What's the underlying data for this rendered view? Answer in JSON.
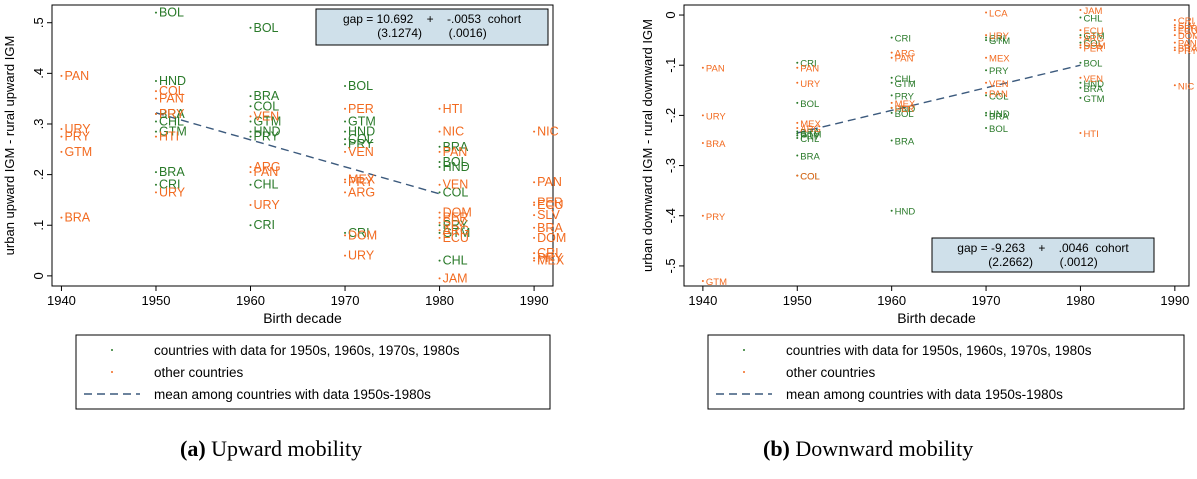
{
  "colors": {
    "cohort": "#2a7a2a",
    "other": "#f26b21",
    "mean_line": "#3c5a7d",
    "annotation_bg": "#cfe0ea",
    "axis": "#000000"
  },
  "chart_data": [
    {
      "type": "scatter",
      "panel_label": "(a)",
      "caption": "Upward mobility",
      "xlabel": "Birth decade",
      "ylabel": "urban upward IGM - rural upward IGM",
      "xlim": [
        1939,
        1992
      ],
      "ylim": [
        -0.02,
        0.535
      ],
      "xticks": [
        1940,
        1950,
        1960,
        1970,
        1980,
        1990
      ],
      "yticks": [
        0,
        0.1,
        0.2,
        0.3,
        0.4,
        0.5
      ],
      "yticklabels": [
        "0",
        ".1",
        ".2",
        ".3",
        ".4",
        ".5"
      ],
      "grid": false,
      "annotation": {
        "line1": "gap = 10.692    +    -.0053  cohort",
        "line2": "(3.1274)        (.0016)",
        "placement": "top-right"
      },
      "fit_line": {
        "name": "mean among countries with data 1950s-1980s",
        "x": [
          1950,
          1980
        ],
        "y": [
          0.322,
          0.162
        ]
      },
      "legend": {
        "placement": "bottom",
        "entries": [
          {
            "label": "countries with data for 1950s, 1960s, 1970s, 1980s",
            "kind": "cohort"
          },
          {
            "label": "other countries",
            "kind": "other"
          },
          {
            "label": "mean among countries with data 1950s-1980s",
            "kind": "line"
          }
        ]
      },
      "series": [
        {
          "kind": "cohort",
          "points": [
            {
              "x": 1950,
              "y": 0.52,
              "label": "BOL"
            },
            {
              "x": 1950,
              "y": 0.385,
              "label": "HND"
            },
            {
              "x": 1950,
              "y": 0.32,
              "label": "BRA"
            },
            {
              "x": 1950,
              "y": 0.305,
              "label": "CHL"
            },
            {
              "x": 1950,
              "y": 0.285,
              "label": "GTM"
            },
            {
              "x": 1950,
              "y": 0.205,
              "label": "BRA"
            },
            {
              "x": 1950,
              "y": 0.18,
              "label": "CRI"
            },
            {
              "x": 1960,
              "y": 0.49,
              "label": "BOL"
            },
            {
              "x": 1960,
              "y": 0.355,
              "label": "BRA"
            },
            {
              "x": 1960,
              "y": 0.335,
              "label": "COL"
            },
            {
              "x": 1960,
              "y": 0.305,
              "label": "GTM"
            },
            {
              "x": 1960,
              "y": 0.285,
              "label": "HND"
            },
            {
              "x": 1960,
              "y": 0.275,
              "label": "PRY"
            },
            {
              "x": 1960,
              "y": 0.18,
              "label": "CHL"
            },
            {
              "x": 1960,
              "y": 0.1,
              "label": "CRI"
            },
            {
              "x": 1970,
              "y": 0.375,
              "label": "BOL"
            },
            {
              "x": 1970,
              "y": 0.305,
              "label": "GTM"
            },
            {
              "x": 1970,
              "y": 0.285,
              "label": "HND"
            },
            {
              "x": 1970,
              "y": 0.27,
              "label": "COL"
            },
            {
              "x": 1970,
              "y": 0.26,
              "label": "PRY"
            },
            {
              "x": 1970,
              "y": 0.085,
              "label": "CRI"
            },
            {
              "x": 1980,
              "y": 0.255,
              "label": "BRA"
            },
            {
              "x": 1980,
              "y": 0.225,
              "label": "BOL"
            },
            {
              "x": 1980,
              "y": 0.215,
              "label": "HND"
            },
            {
              "x": 1980,
              "y": 0.165,
              "label": "COL"
            },
            {
              "x": 1980,
              "y": 0.1,
              "label": "PRY"
            },
            {
              "x": 1980,
              "y": 0.085,
              "label": "GTM"
            },
            {
              "x": 1980,
              "y": 0.03,
              "label": "CHL"
            }
          ]
        },
        {
          "kind": "other",
          "points": [
            {
              "x": 1940,
              "y": 0.395,
              "label": "PAN"
            },
            {
              "x": 1940,
              "y": 0.29,
              "label": "URY"
            },
            {
              "x": 1940,
              "y": 0.275,
              "label": "PRY"
            },
            {
              "x": 1940,
              "y": 0.245,
              "label": "GTM"
            },
            {
              "x": 1940,
              "y": 0.115,
              "label": "BRA"
            },
            {
              "x": 1950,
              "y": 0.365,
              "label": "COL"
            },
            {
              "x": 1950,
              "y": 0.35,
              "label": "PAN"
            },
            {
              "x": 1950,
              "y": 0.32,
              "label": "PRY"
            },
            {
              "x": 1950,
              "y": 0.275,
              "label": "HTI"
            },
            {
              "x": 1950,
              "y": 0.165,
              "label": "URY"
            },
            {
              "x": 1960,
              "y": 0.315,
              "label": "VEN"
            },
            {
              "x": 1960,
              "y": 0.215,
              "label": "ARG"
            },
            {
              "x": 1960,
              "y": 0.205,
              "label": "PAN"
            },
            {
              "x": 1960,
              "y": 0.14,
              "label": "URY"
            },
            {
              "x": 1970,
              "y": 0.33,
              "label": "PER"
            },
            {
              "x": 1970,
              "y": 0.245,
              "label": "VEN"
            },
            {
              "x": 1970,
              "y": 0.19,
              "label": "MEX"
            },
            {
              "x": 1970,
              "y": 0.185,
              "label": "PRY"
            },
            {
              "x": 1970,
              "y": 0.165,
              "label": "ARG"
            },
            {
              "x": 1970,
              "y": 0.08,
              "label": "DOM"
            },
            {
              "x": 1970,
              "y": 0.04,
              "label": "URY"
            },
            {
              "x": 1980,
              "y": 0.33,
              "label": "HTI"
            },
            {
              "x": 1980,
              "y": 0.285,
              "label": "NIC"
            },
            {
              "x": 1980,
              "y": 0.245,
              "label": "PAN"
            },
            {
              "x": 1980,
              "y": 0.18,
              "label": "VEN"
            },
            {
              "x": 1980,
              "y": 0.125,
              "label": "DOM"
            },
            {
              "x": 1980,
              "y": 0.115,
              "label": "PER"
            },
            {
              "x": 1980,
              "y": 0.105,
              "label": "SLV"
            },
            {
              "x": 1980,
              "y": 0.09,
              "label": "ARG"
            },
            {
              "x": 1980,
              "y": 0.075,
              "label": "ECU"
            },
            {
              "x": 1980,
              "y": -0.005,
              "label": "JAM"
            },
            {
              "x": 1990,
              "y": 0.285,
              "label": "NIC"
            },
            {
              "x": 1990,
              "y": 0.185,
              "label": "PAN"
            },
            {
              "x": 1990,
              "y": 0.145,
              "label": "PER"
            },
            {
              "x": 1990,
              "y": 0.14,
              "label": "ECU"
            },
            {
              "x": 1990,
              "y": 0.12,
              "label": "SLV"
            },
            {
              "x": 1990,
              "y": 0.095,
              "label": "BRA"
            },
            {
              "x": 1990,
              "y": 0.075,
              "label": "DOM"
            },
            {
              "x": 1990,
              "y": 0.045,
              "label": "CRI"
            },
            {
              "x": 1990,
              "y": 0.035,
              "label": "PRY"
            },
            {
              "x": 1990,
              "y": 0.03,
              "label": "MEX"
            }
          ]
        }
      ]
    },
    {
      "type": "scatter",
      "panel_label": "(b)",
      "caption": "Downward mobility",
      "xlabel": "Birth decade",
      "ylabel": "urban downward IGM - rural downward IGM",
      "xlim": [
        1938,
        1991.5
      ],
      "ylim": [
        -0.54,
        0.02
      ],
      "xticks": [
        1940,
        1950,
        1960,
        1970,
        1980,
        1990
      ],
      "yticks": [
        -0.5,
        -0.4,
        -0.3,
        -0.2,
        -0.1,
        0
      ],
      "yticklabels": [
        "-.5",
        "-.4",
        "-.3",
        "-.2",
        "-.1",
        "0"
      ],
      "grid": false,
      "annotation": {
        "line1": "gap = -9.263    +    .0046  cohort",
        "line2": "(2.2662)        (.0012)",
        "placement": "bottom-right"
      },
      "fit_line": {
        "name": "mean among countries with data 1950s-1980s",
        "x": [
          1950,
          1980
        ],
        "y": [
          -0.235,
          -0.1
        ]
      },
      "legend": {
        "placement": "bottom",
        "entries": [
          {
            "label": "countries with data for 1950s, 1960s, 1970s, 1980s",
            "kind": "cohort"
          },
          {
            "label": "other countries",
            "kind": "other"
          },
          {
            "label": "mean among countries with data 1950s-1980s",
            "kind": "line"
          }
        ]
      },
      "series": [
        {
          "kind": "cohort",
          "points": [
            {
              "x": 1950,
              "y": -0.095,
              "label": "CRI"
            },
            {
              "x": 1950,
              "y": -0.175,
              "label": "BOL"
            },
            {
              "x": 1950,
              "y": -0.232,
              "label": "BRA"
            },
            {
              "x": 1950,
              "y": -0.236,
              "label": "GTM"
            },
            {
              "x": 1950,
              "y": -0.24,
              "label": "PRY"
            },
            {
              "x": 1950,
              "y": -0.245,
              "label": "CHL"
            },
            {
              "x": 1950,
              "y": -0.28,
              "label": "BRA"
            },
            {
              "x": 1950,
              "y": -0.32,
              "label": "COL"
            },
            {
              "x": 1960,
              "y": -0.045,
              "label": "CRI"
            },
            {
              "x": 1960,
              "y": -0.125,
              "label": "CHL"
            },
            {
              "x": 1960,
              "y": -0.135,
              "label": "GTM"
            },
            {
              "x": 1960,
              "y": -0.16,
              "label": "PRY"
            },
            {
              "x": 1960,
              "y": -0.185,
              "label": "HND"
            },
            {
              "x": 1960,
              "y": -0.195,
              "label": "BOL"
            },
            {
              "x": 1960,
              "y": -0.25,
              "label": "BRA"
            },
            {
              "x": 1960,
              "y": -0.39,
              "label": "HND"
            },
            {
              "x": 1970,
              "y": -0.045,
              "label": "CRI"
            },
            {
              "x": 1970,
              "y": -0.05,
              "label": "GTM"
            },
            {
              "x": 1970,
              "y": -0.11,
              "label": "PRY"
            },
            {
              "x": 1970,
              "y": -0.16,
              "label": "COL"
            },
            {
              "x": 1970,
              "y": -0.195,
              "label": "HND"
            },
            {
              "x": 1970,
              "y": -0.2,
              "label": "BRA"
            },
            {
              "x": 1970,
              "y": -0.225,
              "label": "BOL"
            },
            {
              "x": 1980,
              "y": -0.005,
              "label": "CHL"
            },
            {
              "x": 1980,
              "y": -0.04,
              "label": "GTM"
            },
            {
              "x": 1980,
              "y": -0.055,
              "label": "COL"
            },
            {
              "x": 1980,
              "y": -0.135,
              "label": "HND"
            },
            {
              "x": 1980,
              "y": -0.145,
              "label": "BRA"
            },
            {
              "x": 1980,
              "y": -0.165,
              "label": "GTM"
            },
            {
              "x": 1980,
              "y": -0.095,
              "label": "BOL"
            }
          ]
        },
        {
          "kind": "other",
          "points": [
            {
              "x": 1940,
              "y": -0.105,
              "label": "PAN"
            },
            {
              "x": 1940,
              "y": -0.2,
              "label": "URY"
            },
            {
              "x": 1940,
              "y": -0.255,
              "label": "BRA"
            },
            {
              "x": 1940,
              "y": -0.4,
              "label": "PRY"
            },
            {
              "x": 1940,
              "y": -0.53,
              "label": "GTM"
            },
            {
              "x": 1950,
              "y": -0.105,
              "label": "PAN"
            },
            {
              "x": 1950,
              "y": -0.135,
              "label": "URY"
            },
            {
              "x": 1950,
              "y": -0.215,
              "label": "MEX"
            },
            {
              "x": 1950,
              "y": -0.225,
              "label": "ARG"
            },
            {
              "x": 1950,
              "y": -0.32,
              "label": "COL"
            },
            {
              "x": 1960,
              "y": -0.075,
              "label": "ARG"
            },
            {
              "x": 1960,
              "y": -0.085,
              "label": "PAN"
            },
            {
              "x": 1960,
              "y": -0.175,
              "label": "MEX"
            },
            {
              "x": 1960,
              "y": -0.185,
              "label": "PER"
            },
            {
              "x": 1970,
              "y": 0.005,
              "label": "LCA"
            },
            {
              "x": 1970,
              "y": -0.04,
              "label": "URY"
            },
            {
              "x": 1970,
              "y": -0.085,
              "label": "MEX"
            },
            {
              "x": 1970,
              "y": -0.135,
              "label": "VEN"
            },
            {
              "x": 1970,
              "y": -0.155,
              "label": "PAN"
            },
            {
              "x": 1980,
              "y": 0.01,
              "label": "JAM"
            },
            {
              "x": 1980,
              "y": -0.03,
              "label": "ECU"
            },
            {
              "x": 1980,
              "y": -0.045,
              "label": "ARG"
            },
            {
              "x": 1980,
              "y": -0.06,
              "label": "DOM"
            },
            {
              "x": 1980,
              "y": -0.065,
              "label": "PER"
            },
            {
              "x": 1980,
              "y": -0.125,
              "label": "VEN"
            },
            {
              "x": 1980,
              "y": -0.235,
              "label": "HTI"
            },
            {
              "x": 1990,
              "y": -0.01,
              "label": "CRI"
            },
            {
              "x": 1990,
              "y": -0.02,
              "label": "SLV"
            },
            {
              "x": 1990,
              "y": -0.025,
              "label": "PER"
            },
            {
              "x": 1990,
              "y": -0.03,
              "label": "ECU"
            },
            {
              "x": 1990,
              "y": -0.04,
              "label": "DOM"
            },
            {
              "x": 1990,
              "y": -0.055,
              "label": "PAN"
            },
            {
              "x": 1990,
              "y": -0.065,
              "label": "BRA"
            },
            {
              "x": 1990,
              "y": -0.07,
              "label": "PRY"
            },
            {
              "x": 1990,
              "y": -0.14,
              "label": "NIC"
            }
          ]
        }
      ]
    }
  ]
}
